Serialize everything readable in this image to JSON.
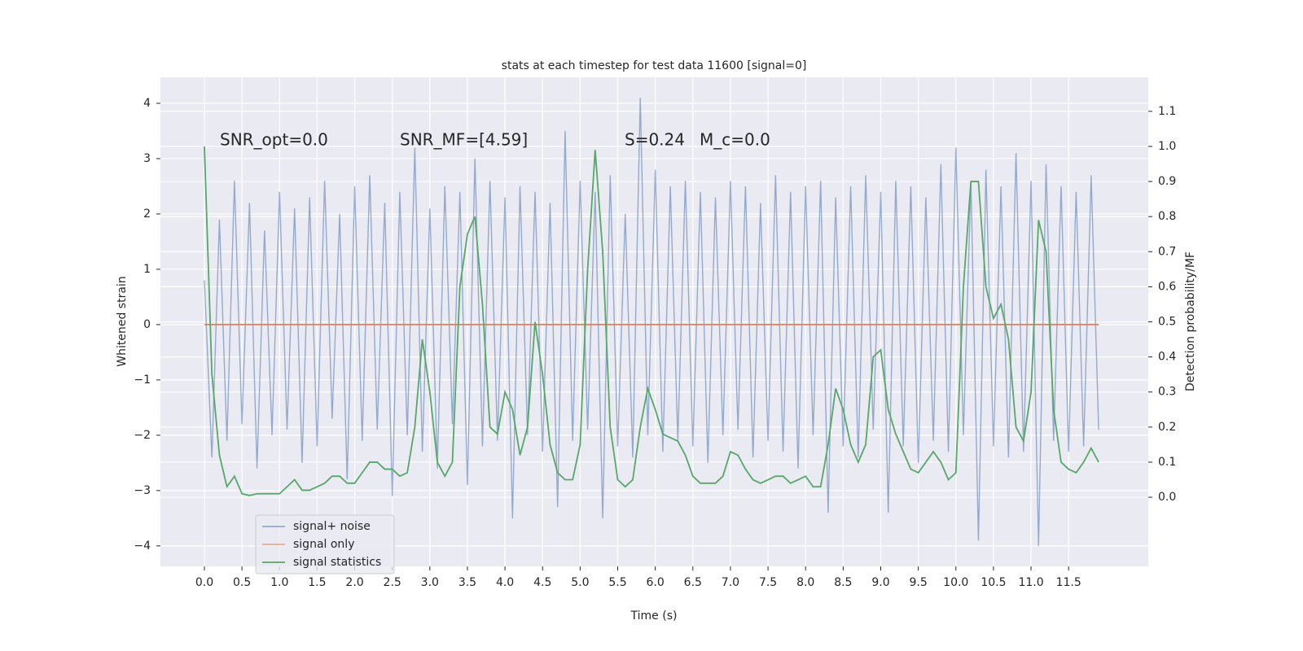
{
  "chart_data": {
    "type": "line",
    "title": "stats at each timestep for test data 11600 [signal=0]",
    "x_label": "Time (s)",
    "y_label": "Whitened strain",
    "y2_label": "Detection probability/MF",
    "annotations": [
      "SNR_opt=0.0",
      "SNR_MF=[4.59]",
      "S=0.24",
      "M_c=0.0"
    ],
    "x": [
      0,
      0.1,
      0.2,
      0.3,
      0.4,
      0.5,
      0.6,
      0.7,
      0.8,
      0.9,
      1.0,
      1.1,
      1.2,
      1.3,
      1.4,
      1.5,
      1.6,
      1.7,
      1.8,
      1.9,
      2.0,
      2.1,
      2.2,
      2.3,
      2.4,
      2.5,
      2.6,
      2.7,
      2.8,
      2.9,
      3.0,
      3.1,
      3.2,
      3.3,
      3.4,
      3.5,
      3.6,
      3.7,
      3.8,
      3.9,
      4.0,
      4.1,
      4.2,
      4.3,
      4.4,
      4.5,
      4.6,
      4.7,
      4.8,
      4.9,
      5.0,
      5.1,
      5.2,
      5.3,
      5.4,
      5.5,
      5.6,
      5.7,
      5.8,
      5.9,
      6.0,
      6.1,
      6.2,
      6.3,
      6.4,
      6.5,
      6.6,
      6.7,
      6.8,
      6.9,
      7.0,
      7.1,
      7.2,
      7.3,
      7.4,
      7.5,
      7.6,
      7.7,
      7.8,
      7.9,
      8.0,
      8.1,
      8.2,
      8.3,
      8.4,
      8.5,
      8.6,
      8.7,
      8.8,
      8.9,
      9.0,
      9.1,
      9.2,
      9.3,
      9.4,
      9.5,
      9.6,
      9.7,
      9.8,
      9.9,
      10.0,
      10.1,
      10.2,
      10.3,
      10.4,
      10.5,
      10.6,
      10.7,
      10.8,
      10.9,
      11.0,
      11.1,
      11.2,
      11.3,
      11.4,
      11.5,
      11.6,
      11.7,
      11.8,
      11.9
    ],
    "series": [
      {
        "name": "signal+ noise",
        "color": "#4c72b0",
        "axis": "y",
        "values": [
          0.8,
          -2.4,
          1.9,
          -2.1,
          2.6,
          -1.8,
          2.2,
          -2.6,
          1.7,
          -2.0,
          2.4,
          -1.9,
          2.1,
          -2.5,
          2.3,
          -2.2,
          2.6,
          -1.7,
          2.0,
          -2.8,
          2.5,
          -2.1,
          2.7,
          -1.9,
          2.2,
          -3.1,
          2.4,
          -2.0,
          3.2,
          -2.3,
          2.1,
          -2.6,
          2.5,
          -1.8,
          2.4,
          -2.9,
          3.0,
          -2.2,
          2.6,
          -2.1,
          2.3,
          -3.5,
          2.5,
          -2.0,
          2.4,
          -2.3,
          2.2,
          -3.3,
          3.5,
          -2.1,
          2.6,
          -1.9,
          2.4,
          -3.5,
          2.7,
          -2.2,
          2.0,
          -2.4,
          4.1,
          -2.0,
          2.8,
          -2.3,
          2.5,
          -2.1,
          2.6,
          -2.2,
          2.4,
          -2.5,
          2.3,
          -2.0,
          2.6,
          -1.9,
          2.5,
          -2.4,
          2.2,
          -2.1,
          2.7,
          -2.3,
          2.4,
          -2.6,
          2.5,
          -2.0,
          2.6,
          -3.4,
          2.3,
          -2.2,
          2.5,
          -2.4,
          2.7,
          -1.9,
          2.4,
          -3.4,
          2.6,
          -2.2,
          2.5,
          -2.5,
          2.3,
          -2.1,
          2.9,
          -2.3,
          3.2,
          -2.0,
          2.6,
          -3.9,
          2.8,
          -2.2,
          2.5,
          -2.4,
          3.1,
          -2.3,
          2.6,
          -4.0,
          2.9,
          -2.1,
          2.5,
          -2.3,
          2.4,
          -2.2,
          2.7,
          -1.9
        ]
      },
      {
        "name": "signal only",
        "color": "#dd8452",
        "axis": "y",
        "values": [
          0,
          0,
          0,
          0,
          0,
          0,
          0,
          0,
          0,
          0,
          0,
          0,
          0,
          0,
          0,
          0,
          0,
          0,
          0,
          0,
          0,
          0,
          0,
          0,
          0,
          0,
          0,
          0,
          0,
          0,
          0,
          0,
          0,
          0,
          0,
          0,
          0,
          0,
          0,
          0,
          0,
          0,
          0,
          0,
          0,
          0,
          0,
          0,
          0,
          0,
          0,
          0,
          0,
          0,
          0,
          0,
          0,
          0,
          0,
          0,
          0,
          0,
          0,
          0,
          0,
          0,
          0,
          0,
          0,
          0,
          0,
          0,
          0,
          0,
          0,
          0,
          0,
          0,
          0,
          0,
          0,
          0,
          0,
          0,
          0,
          0,
          0,
          0,
          0,
          0,
          0,
          0,
          0,
          0,
          0,
          0,
          0,
          0,
          0,
          0,
          0,
          0,
          0,
          0,
          0,
          0,
          0,
          0,
          0,
          0,
          0,
          0,
          0,
          0,
          0,
          0,
          0,
          0,
          0,
          0
        ]
      },
      {
        "name": "signal statistics",
        "color": "#55a868",
        "axis": "y2",
        "values": [
          1.0,
          0.35,
          0.12,
          0.03,
          0.06,
          0.01,
          0.005,
          0.01,
          0.01,
          0.01,
          0.01,
          0.03,
          0.05,
          0.02,
          0.02,
          0.03,
          0.04,
          0.06,
          0.06,
          0.04,
          0.04,
          0.07,
          0.1,
          0.1,
          0.08,
          0.08,
          0.06,
          0.07,
          0.2,
          0.45,
          0.3,
          0.1,
          0.06,
          0.1,
          0.6,
          0.75,
          0.8,
          0.55,
          0.2,
          0.18,
          0.3,
          0.25,
          0.12,
          0.2,
          0.5,
          0.35,
          0.15,
          0.07,
          0.05,
          0.05,
          0.15,
          0.65,
          0.99,
          0.7,
          0.2,
          0.05,
          0.03,
          0.05,
          0.2,
          0.31,
          0.25,
          0.18,
          0.17,
          0.16,
          0.12,
          0.06,
          0.04,
          0.04,
          0.04,
          0.06,
          0.13,
          0.12,
          0.08,
          0.05,
          0.04,
          0.05,
          0.06,
          0.06,
          0.04,
          0.05,
          0.06,
          0.03,
          0.03,
          0.15,
          0.31,
          0.25,
          0.15,
          0.1,
          0.15,
          0.4,
          0.42,
          0.25,
          0.18,
          0.13,
          0.08,
          0.07,
          0.1,
          0.13,
          0.1,
          0.05,
          0.07,
          0.6,
          0.9,
          0.9,
          0.6,
          0.51,
          0.55,
          0.45,
          0.2,
          0.16,
          0.3,
          0.79,
          0.7,
          0.25,
          0.1,
          0.08,
          0.07,
          0.1,
          0.14,
          0.1
        ]
      }
    ],
    "xlim": [
      -0.585,
      12.56
    ],
    "xticks": [
      {
        "value": 0,
        "label": "0.0"
      },
      {
        "value": 0.5,
        "label": "0.5"
      },
      {
        "value": 1,
        "label": "1.0"
      },
      {
        "value": 1.5,
        "label": "1.5"
      },
      {
        "value": 2,
        "label": "2.0"
      },
      {
        "value": 2.5,
        "label": "2.5"
      },
      {
        "value": 3,
        "label": "3.0"
      },
      {
        "value": 3.5,
        "label": "3.5"
      },
      {
        "value": 4,
        "label": "4.0"
      },
      {
        "value": 4.5,
        "label": "4.5"
      },
      {
        "value": 5,
        "label": "5.0"
      },
      {
        "value": 5.5,
        "label": "5.5"
      },
      {
        "value": 6,
        "label": "6.0"
      },
      {
        "value": 6.5,
        "label": "6.5"
      },
      {
        "value": 7,
        "label": "7.0"
      },
      {
        "value": 7.5,
        "label": "7.5"
      },
      {
        "value": 8,
        "label": "8.0"
      },
      {
        "value": 8.5,
        "label": "8.5"
      },
      {
        "value": 9,
        "label": "9.0"
      },
      {
        "value": 9.5,
        "label": "9.5"
      },
      {
        "value": 10,
        "label": "10.0"
      },
      {
        "value": 10.5,
        "label": "10.5"
      },
      {
        "value": 11,
        "label": "11.0"
      },
      {
        "value": 11.5,
        "label": "11.5"
      }
    ],
    "ylim": [
      -4.37,
      4.47
    ],
    "yticks": [
      {
        "value": -4,
        "label": "−4"
      },
      {
        "value": -3,
        "label": "−3"
      },
      {
        "value": -2,
        "label": "−2"
      },
      {
        "value": -1,
        "label": "−1"
      },
      0,
      1,
      2,
      3,
      4
    ],
    "y2lim": [
      -0.197,
      1.197
    ],
    "y2ticks": [
      {
        "value": 0,
        "label": "0.0"
      },
      {
        "value": 0.1,
        "label": "0.1"
      },
      {
        "value": 0.2,
        "label": "0.2"
      },
      {
        "value": 0.3,
        "label": "0.3"
      },
      {
        "value": 0.4,
        "label": "0.4"
      },
      {
        "value": 0.5,
        "label": "0.5"
      },
      {
        "value": 0.6,
        "label": "0.6"
      },
      {
        "value": 0.7,
        "label": "0.7"
      },
      {
        "value": 0.8,
        "label": "0.8"
      },
      {
        "value": 0.9,
        "label": "0.9"
      },
      {
        "value": 1.0,
        "label": "1.0"
      },
      {
        "value": 1.1,
        "label": "1.1"
      }
    ],
    "grid": true,
    "legend_loc": "lower left"
  }
}
